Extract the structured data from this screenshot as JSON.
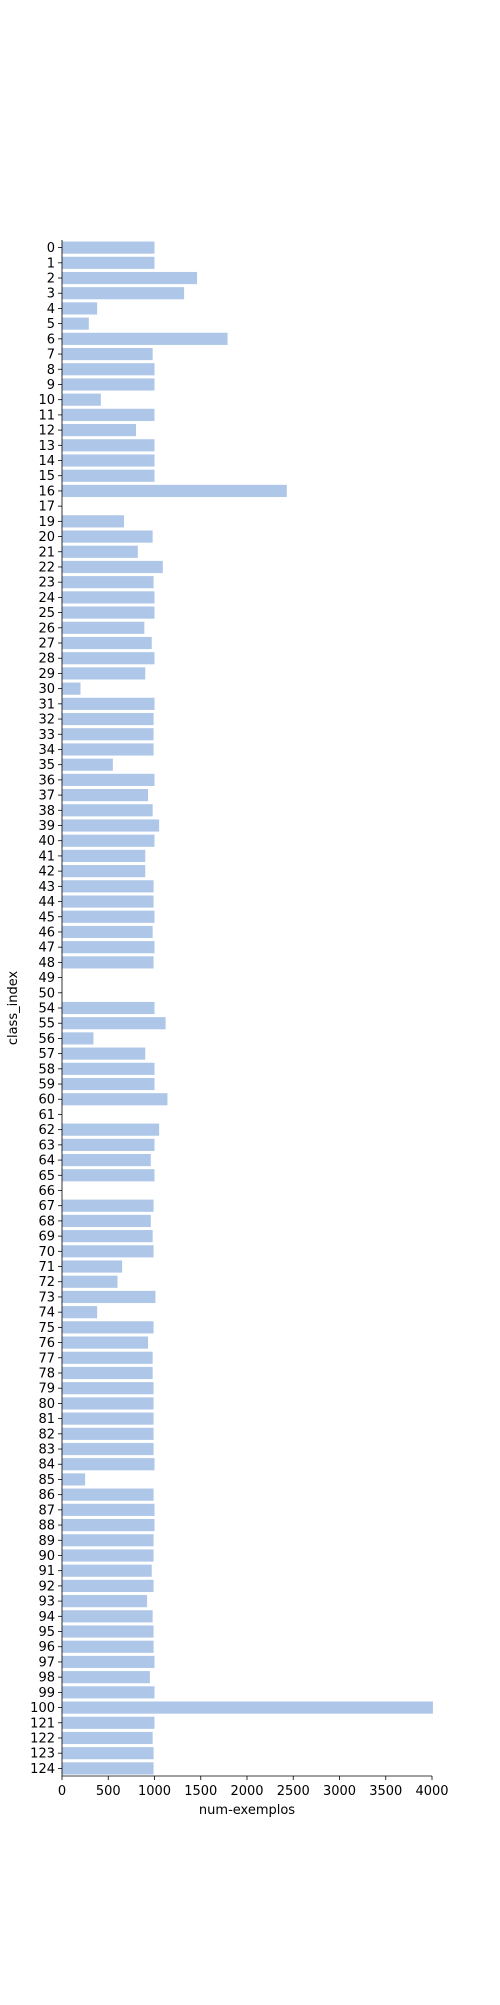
{
  "chart_data": {
    "type": "bar",
    "orientation": "horizontal",
    "xlabel": "num-exemplos",
    "ylabel": "class_index",
    "xlim": [
      0,
      4200
    ],
    "xticks": [
      0,
      500,
      1000,
      1500,
      2000,
      2500,
      3000,
      3500,
      4000
    ],
    "grid": false,
    "bar_color": "#aec7e8",
    "categories": [
      "0",
      "1",
      "2",
      "3",
      "4",
      "5",
      "6",
      "7",
      "8",
      "9",
      "10",
      "11",
      "12",
      "13",
      "14",
      "15",
      "16",
      "17",
      "19",
      "20",
      "21",
      "22",
      "23",
      "24",
      "25",
      "26",
      "27",
      "28",
      "29",
      "30",
      "31",
      "32",
      "33",
      "34",
      "35",
      "36",
      "37",
      "38",
      "39",
      "40",
      "41",
      "42",
      "43",
      "44",
      "45",
      "46",
      "47",
      "48",
      "49",
      "50",
      "54",
      "55",
      "56",
      "57",
      "58",
      "59",
      "60",
      "61",
      "62",
      "63",
      "64",
      "65",
      "66",
      "67",
      "68",
      "69",
      "70",
      "71",
      "72",
      "73",
      "74",
      "75",
      "76",
      "77",
      "78",
      "79",
      "80",
      "81",
      "82",
      "83",
      "84",
      "85",
      "86",
      "87",
      "88",
      "89",
      "90",
      "91",
      "92",
      "93",
      "94",
      "95",
      "96",
      "97",
      "98",
      "99",
      "100",
      "121",
      "122",
      "123",
      "124"
    ],
    "values": [
      1000,
      1000,
      1460,
      1320,
      380,
      290,
      1790,
      980,
      1000,
      1000,
      420,
      1000,
      800,
      1000,
      1000,
      1000,
      2430,
      0,
      670,
      980,
      820,
      1090,
      990,
      1000,
      1000,
      890,
      970,
      1000,
      900,
      200,
      1000,
      990,
      990,
      990,
      550,
      1000,
      930,
      980,
      1050,
      1000,
      900,
      900,
      990,
      990,
      1000,
      980,
      1000,
      990,
      0,
      0,
      1000,
      1120,
      340,
      900,
      1000,
      1000,
      1140,
      0,
      1050,
      1000,
      960,
      1000,
      0,
      990,
      960,
      980,
      990,
      650,
      600,
      1010,
      380,
      990,
      930,
      980,
      980,
      990,
      990,
      990,
      990,
      990,
      1000,
      250,
      990,
      1000,
      1000,
      990,
      990,
      970,
      990,
      920,
      980,
      990,
      990,
      1000,
      950,
      1000,
      4010,
      1000,
      980,
      990,
      990
    ]
  }
}
